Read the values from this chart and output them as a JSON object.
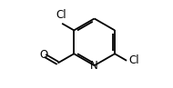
{
  "background": "#ffffff",
  "bond_color": "#000000",
  "lw": 1.3,
  "ring_double_off": 0.018,
  "figsize": [
    1.9,
    0.97
  ],
  "dpi": 100,
  "xlim": [
    0.0,
    1.0
  ],
  "ylim": [
    0.05,
    0.95
  ],
  "font_size": 8.5
}
